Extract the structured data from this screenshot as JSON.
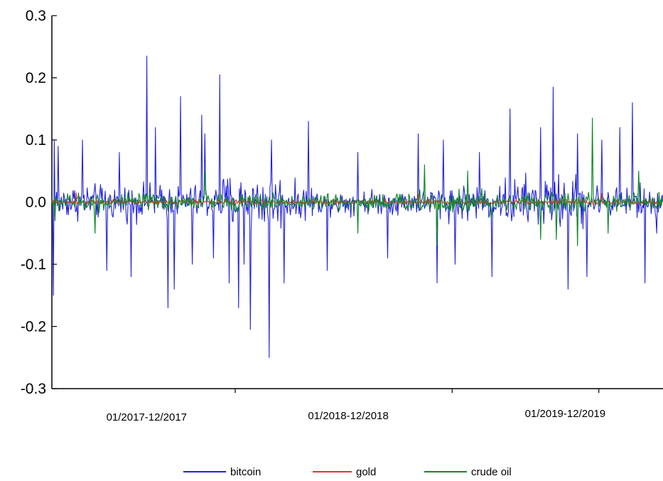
{
  "chart_data": {
    "type": "line",
    "title": "",
    "xlabel": "",
    "ylabel": "",
    "ylim": [
      -0.3,
      0.3
    ],
    "yticks": [
      "0.3",
      "0.2",
      "0.1",
      "0.0",
      "-0.1",
      "-0.2",
      "-0.3"
    ],
    "yvalues": [
      0.3,
      0.2,
      0.1,
      0.0,
      -0.1,
      -0.2,
      -0.3
    ],
    "categories": [
      "01/2017-12/2017",
      "01/2018-12/2018",
      "01/2019-12/2019"
    ],
    "grid": false,
    "legend": "bottom",
    "n_points": 780,
    "series": [
      {
        "name": "bitcoin",
        "color": "#2222dd",
        "amplitude": 0.04,
        "spikes": [
          [
            0.002,
            -0.15
          ],
          [
            0.004,
            0.1
          ],
          [
            0.01,
            0.09
          ],
          [
            0.05,
            0.1
          ],
          [
            0.09,
            -0.11
          ],
          [
            0.11,
            0.08
          ],
          [
            0.13,
            -0.12
          ],
          [
            0.155,
            0.235
          ],
          [
            0.17,
            0.12
          ],
          [
            0.19,
            -0.17
          ],
          [
            0.2,
            -0.14
          ],
          [
            0.21,
            0.17
          ],
          [
            0.23,
            -0.1
          ],
          [
            0.245,
            0.14
          ],
          [
            0.25,
            0.11
          ],
          [
            0.265,
            -0.09
          ],
          [
            0.275,
            0.205
          ],
          [
            0.29,
            -0.13
          ],
          [
            0.305,
            -0.17
          ],
          [
            0.315,
            -0.1
          ],
          [
            0.325,
            -0.205
          ],
          [
            0.355,
            -0.25
          ],
          [
            0.36,
            0.1
          ],
          [
            0.38,
            -0.13
          ],
          [
            0.42,
            0.13
          ],
          [
            0.45,
            -0.11
          ],
          [
            0.5,
            0.08
          ],
          [
            0.55,
            -0.09
          ],
          [
            0.6,
            0.11
          ],
          [
            0.63,
            -0.13
          ],
          [
            0.64,
            0.1
          ],
          [
            0.66,
            -0.1
          ],
          [
            0.7,
            0.08
          ],
          [
            0.72,
            -0.12
          ],
          [
            0.75,
            0.15
          ],
          [
            0.8,
            0.12
          ],
          [
            0.82,
            0.185
          ],
          [
            0.845,
            -0.14
          ],
          [
            0.86,
            0.11
          ],
          [
            0.875,
            -0.12
          ],
          [
            0.9,
            0.1
          ],
          [
            0.93,
            0.12
          ],
          [
            0.95,
            0.16
          ],
          [
            0.97,
            -0.13
          ],
          [
            0.99,
            -0.05
          ]
        ]
      },
      {
        "name": "gold",
        "color": "#e83030",
        "amplitude": 0.006,
        "spikes": [
          [
            0.04,
            0.015
          ],
          [
            0.6,
            0.012
          ],
          [
            0.9,
            0.014
          ]
        ]
      },
      {
        "name": "crude oil",
        "color": "#138a2a",
        "amplitude": 0.02,
        "spikes": [
          [
            0.005,
            -0.03
          ],
          [
            0.07,
            -0.05
          ],
          [
            0.25,
            0.05
          ],
          [
            0.5,
            -0.05
          ],
          [
            0.61,
            0.06
          ],
          [
            0.63,
            -0.07
          ],
          [
            0.68,
            0.05
          ],
          [
            0.8,
            -0.06
          ],
          [
            0.825,
            -0.06
          ],
          [
            0.86,
            -0.07
          ],
          [
            0.885,
            0.135
          ],
          [
            0.91,
            -0.05
          ],
          [
            0.96,
            0.05
          ]
        ]
      }
    ]
  }
}
